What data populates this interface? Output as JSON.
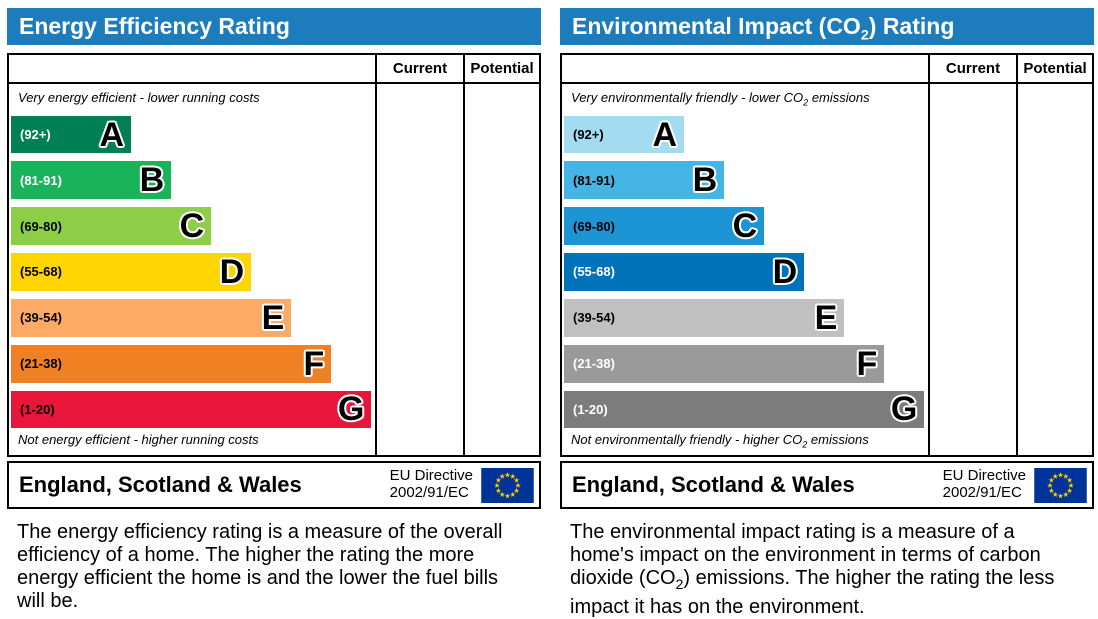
{
  "page": {
    "header_bar_color": "#1c7cbc",
    "border_color": "#000000",
    "eu_flag": {
      "field_color": "#003399",
      "star_color": "#ffcc00"
    }
  },
  "chart_data": [
    {
      "type": "bar",
      "title_pre": "Energy Efficiency Rating",
      "title_sub": "",
      "title_post": "",
      "columns": [
        "Current",
        "Potential"
      ],
      "current_value": "",
      "potential_value": "",
      "caption_top_pre": "Very energy efficient - lower running costs",
      "caption_top_sub": "",
      "caption_top_post": "",
      "caption_bottom_pre": "Not energy efficient - higher running costs",
      "caption_bottom_sub": "",
      "caption_bottom_post": "",
      "bands": [
        {
          "letter": "A",
          "range": "(92+)",
          "score_min": 92,
          "score_max": 100,
          "width_pct": 33,
          "color": "#008054",
          "label_color": "#ffffff"
        },
        {
          "letter": "B",
          "range": "(81-91)",
          "score_min": 81,
          "score_max": 91,
          "width_pct": 44,
          "color": "#19b459",
          "label_color": "#ffffff"
        },
        {
          "letter": "C",
          "range": "(69-80)",
          "score_min": 69,
          "score_max": 80,
          "width_pct": 55,
          "color": "#8dce46",
          "label_color": "#000000"
        },
        {
          "letter": "D",
          "range": "(55-68)",
          "score_min": 55,
          "score_max": 68,
          "width_pct": 66,
          "color": "#ffd500",
          "label_color": "#000000"
        },
        {
          "letter": "E",
          "range": "(39-54)",
          "score_min": 39,
          "score_max": 54,
          "width_pct": 77,
          "color": "#fcaa65",
          "label_color": "#000000"
        },
        {
          "letter": "F",
          "range": "(21-38)",
          "score_min": 21,
          "score_max": 38,
          "width_pct": 88,
          "color": "#ef8023",
          "label_color": "#000000"
        },
        {
          "letter": "G",
          "range": "(1-20)",
          "score_min": 1,
          "score_max": 20,
          "width_pct": 99,
          "color": "#e9153b",
          "label_color": "#000000"
        }
      ],
      "footer": {
        "region": "England, Scotland & Wales",
        "directive_line1": "EU Directive",
        "directive_line2": "2002/91/EC"
      },
      "description_pre": "The energy efficiency rating is a measure of the overall efficiency of a home. The higher the rating the more energy efficient the home is and the lower the fuel bills will be.",
      "description_sub": "",
      "description_post": ""
    },
    {
      "type": "bar",
      "title_pre": "Environmental Impact (CO",
      "title_sub": "2",
      "title_post": ") Rating",
      "columns": [
        "Current",
        "Potential"
      ],
      "current_value": "",
      "potential_value": "",
      "caption_top_pre": "Very environmentally friendly - lower CO",
      "caption_top_sub": "2",
      "caption_top_post": " emissions",
      "caption_bottom_pre": "Not environmentally friendly - higher CO",
      "caption_bottom_sub": "2",
      "caption_bottom_post": " emissions",
      "bands": [
        {
          "letter": "A",
          "range": "(92+)",
          "score_min": 92,
          "score_max": 100,
          "width_pct": 33,
          "color": "#a3dbf0",
          "label_color": "#000000"
        },
        {
          "letter": "B",
          "range": "(81-91)",
          "score_min": 81,
          "score_max": 91,
          "width_pct": 44,
          "color": "#45b5e5",
          "label_color": "#000000"
        },
        {
          "letter": "C",
          "range": "(69-80)",
          "score_min": 69,
          "score_max": 80,
          "width_pct": 55,
          "color": "#1d95d4",
          "label_color": "#000000"
        },
        {
          "letter": "D",
          "range": "(55-68)",
          "score_min": 55,
          "score_max": 68,
          "width_pct": 66,
          "color": "#0072ba",
          "label_color": "#ffffff"
        },
        {
          "letter": "E",
          "range": "(39-54)",
          "score_min": 39,
          "score_max": 54,
          "width_pct": 77,
          "color": "#c0c0c0",
          "label_color": "#000000"
        },
        {
          "letter": "F",
          "range": "(21-38)",
          "score_min": 21,
          "score_max": 38,
          "width_pct": 88,
          "color": "#9a9a9a",
          "label_color": "#ffffff"
        },
        {
          "letter": "G",
          "range": "(1-20)",
          "score_min": 1,
          "score_max": 20,
          "width_pct": 99,
          "color": "#7c7c7c",
          "label_color": "#ffffff"
        }
      ],
      "footer": {
        "region": "England, Scotland & Wales",
        "directive_line1": "EU Directive",
        "directive_line2": "2002/91/EC"
      },
      "description_pre": "The environmental impact rating is a measure of a home's impact on the environment in terms of carbon dioxide (CO",
      "description_sub": "2",
      "description_post": ") emissions. The higher the rating the less impact it has on the environment."
    }
  ]
}
